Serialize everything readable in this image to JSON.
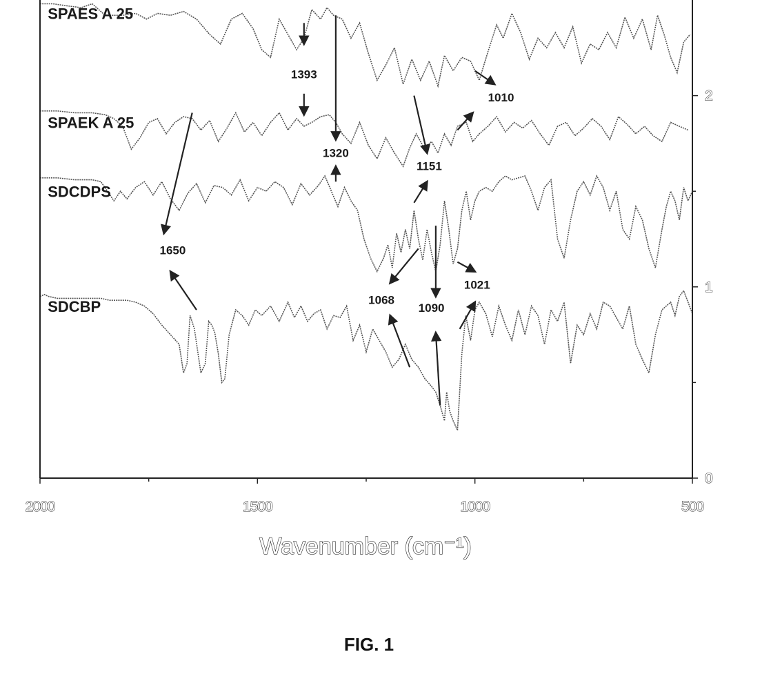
{
  "chart_data": {
    "type": "line",
    "xlabel": "Wavenumber (cm⁻¹)",
    "xlim": [
      2000,
      500
    ],
    "ylim": [
      0,
      2.5
    ],
    "x_ticks": [
      {
        "value": 2000,
        "label": "2000"
      },
      {
        "value": 1500,
        "label": "1500"
      },
      {
        "value": 1000,
        "label": "1000"
      },
      {
        "value": 500,
        "label": "500"
      }
    ],
    "y_ticks": [
      {
        "value": 0,
        "label": "0"
      },
      {
        "value": 1,
        "label": "1"
      },
      {
        "value": 2,
        "label": "2"
      }
    ],
    "series": [
      {
        "name": "SPAES A 25",
        "label_at": [
          1995,
          2.4
        ],
        "x": [
          2000,
          1970,
          1940,
          1905,
          1880,
          1850,
          1810,
          1780,
          1755,
          1730,
          1700,
          1670,
          1640,
          1610,
          1585,
          1560,
          1535,
          1510,
          1490,
          1470,
          1450,
          1430,
          1410,
          1393,
          1375,
          1355,
          1340,
          1325,
          1305,
          1285,
          1265,
          1245,
          1225,
          1205,
          1185,
          1165,
          1145,
          1125,
          1105,
          1085,
          1070,
          1050,
          1030,
          1010,
          990,
          970,
          950,
          935,
          915,
          895,
          875,
          855,
          835,
          815,
          795,
          775,
          755,
          735,
          715,
          695,
          675,
          655,
          635,
          615,
          595,
          580,
          565,
          550,
          535,
          520,
          505
        ],
        "y": [
          2.48,
          2.48,
          2.47,
          2.46,
          2.48,
          2.42,
          2.42,
          2.43,
          2.4,
          2.43,
          2.42,
          2.44,
          2.4,
          2.32,
          2.27,
          2.4,
          2.43,
          2.35,
          2.24,
          2.2,
          2.4,
          2.32,
          2.24,
          2.3,
          2.45,
          2.4,
          2.46,
          2.42,
          2.4,
          2.3,
          2.38,
          2.22,
          2.08,
          2.16,
          2.25,
          2.06,
          2.19,
          2.08,
          2.18,
          2.05,
          2.21,
          2.13,
          2.2,
          2.18,
          2.08,
          2.23,
          2.37,
          2.3,
          2.43,
          2.33,
          2.19,
          2.3,
          2.25,
          2.33,
          2.25,
          2.36,
          2.17,
          2.27,
          2.24,
          2.33,
          2.25,
          2.41,
          2.3,
          2.4,
          2.24,
          2.42,
          2.32,
          2.2,
          2.12,
          2.28,
          2.32
        ]
      },
      {
        "name": "SPAEK A 25",
        "label_at": [
          1995,
          1.83
        ],
        "x": [
          2000,
          1960,
          1920,
          1880,
          1850,
          1830,
          1810,
          1790,
          1770,
          1750,
          1730,
          1710,
          1690,
          1670,
          1650,
          1630,
          1610,
          1590,
          1570,
          1550,
          1530,
          1510,
          1490,
          1470,
          1450,
          1430,
          1410,
          1393,
          1375,
          1355,
          1335,
          1320,
          1305,
          1285,
          1265,
          1245,
          1225,
          1205,
          1185,
          1165,
          1151,
          1135,
          1115,
          1100,
          1085,
          1070,
          1055,
          1040,
          1020,
          1005,
          990,
          970,
          950,
          930,
          910,
          890,
          870,
          850,
          830,
          810,
          790,
          770,
          750,
          730,
          710,
          690,
          670,
          650,
          630,
          610,
          590,
          570,
          550,
          530,
          510
        ],
        "y": [
          1.92,
          1.92,
          1.91,
          1.91,
          1.9,
          1.88,
          1.84,
          1.72,
          1.78,
          1.86,
          1.88,
          1.8,
          1.86,
          1.89,
          1.88,
          1.82,
          1.87,
          1.76,
          1.83,
          1.91,
          1.81,
          1.86,
          1.79,
          1.86,
          1.91,
          1.82,
          1.88,
          1.84,
          1.86,
          1.89,
          1.9,
          1.86,
          1.8,
          1.75,
          1.86,
          1.74,
          1.67,
          1.78,
          1.7,
          1.63,
          1.72,
          1.8,
          1.72,
          1.76,
          1.7,
          1.8,
          1.74,
          1.84,
          1.86,
          1.76,
          1.8,
          1.84,
          1.89,
          1.81,
          1.86,
          1.83,
          1.87,
          1.8,
          1.74,
          1.84,
          1.86,
          1.79,
          1.83,
          1.88,
          1.84,
          1.77,
          1.89,
          1.85,
          1.8,
          1.84,
          1.79,
          1.76,
          1.86,
          1.84,
          1.82
        ]
      },
      {
        "name": "SDCDPS",
        "label_at": [
          1995,
          1.47
        ],
        "x": [
          2000,
          1960,
          1920,
          1880,
          1860,
          1845,
          1830,
          1815,
          1800,
          1780,
          1760,
          1740,
          1720,
          1700,
          1680,
          1660,
          1640,
          1620,
          1600,
          1580,
          1560,
          1540,
          1520,
          1500,
          1480,
          1460,
          1440,
          1420,
          1400,
          1380,
          1360,
          1345,
          1330,
          1315,
          1300,
          1285,
          1270,
          1255,
          1240,
          1225,
          1210,
          1200,
          1190,
          1180,
          1170,
          1160,
          1150,
          1140,
          1130,
          1120,
          1110,
          1100,
          1090,
          1080,
          1070,
          1060,
          1050,
          1040,
          1030,
          1020,
          1010,
          1000,
          990,
          975,
          960,
          945,
          930,
          915,
          900,
          885,
          870,
          855,
          840,
          825,
          810,
          795,
          780,
          765,
          750,
          735,
          720,
          705,
          690,
          675,
          660,
          645,
          630,
          615,
          600,
          585,
          570,
          560,
          550,
          540,
          530,
          520,
          510,
          500
        ],
        "y": [
          1.57,
          1.57,
          1.56,
          1.56,
          1.55,
          1.5,
          1.45,
          1.5,
          1.46,
          1.52,
          1.55,
          1.48,
          1.55,
          1.46,
          1.4,
          1.49,
          1.54,
          1.44,
          1.53,
          1.52,
          1.48,
          1.56,
          1.45,
          1.52,
          1.5,
          1.55,
          1.52,
          1.43,
          1.54,
          1.48,
          1.53,
          1.58,
          1.5,
          1.42,
          1.52,
          1.45,
          1.4,
          1.25,
          1.15,
          1.08,
          1.15,
          1.22,
          1.1,
          1.28,
          1.18,
          1.3,
          1.2,
          1.4,
          1.25,
          1.14,
          1.3,
          1.18,
          1.08,
          1.22,
          1.45,
          1.3,
          1.12,
          1.2,
          1.4,
          1.5,
          1.35,
          1.45,
          1.5,
          1.52,
          1.5,
          1.55,
          1.58,
          1.56,
          1.57,
          1.58,
          1.5,
          1.4,
          1.52,
          1.56,
          1.25,
          1.15,
          1.35,
          1.5,
          1.55,
          1.48,
          1.58,
          1.52,
          1.4,
          1.5,
          1.3,
          1.25,
          1.42,
          1.35,
          1.2,
          1.1,
          1.3,
          1.42,
          1.5,
          1.45,
          1.35,
          1.52,
          1.45,
          1.5
        ]
      },
      {
        "name": "SDCBP",
        "label_at": [
          1995,
          0.87
        ],
        "x": [
          2000,
          1990,
          1980,
          1960,
          1940,
          1920,
          1900,
          1880,
          1860,
          1840,
          1820,
          1800,
          1780,
          1760,
          1740,
          1720,
          1700,
          1680,
          1670,
          1662,
          1655,
          1645,
          1630,
          1620,
          1612,
          1605,
          1598,
          1590,
          1582,
          1575,
          1565,
          1550,
          1535,
          1520,
          1505,
          1490,
          1470,
          1450,
          1430,
          1415,
          1400,
          1385,
          1370,
          1355,
          1340,
          1325,
          1310,
          1295,
          1280,
          1265,
          1250,
          1235,
          1220,
          1205,
          1190,
          1175,
          1160,
          1145,
          1130,
          1115,
          1100,
          1090,
          1080,
          1070,
          1065,
          1058,
          1050,
          1040,
          1030,
          1021,
          1010,
          1000,
          990,
          975,
          960,
          945,
          930,
          915,
          900,
          885,
          870,
          855,
          840,
          825,
          810,
          795,
          780,
          765,
          750,
          735,
          720,
          705,
          690,
          675,
          660,
          645,
          630,
          615,
          600,
          585,
          570,
          560,
          550,
          540,
          530,
          520,
          510,
          500
        ],
        "y": [
          0.95,
          0.96,
          0.95,
          0.94,
          0.94,
          0.94,
          0.94,
          0.94,
          0.94,
          0.93,
          0.93,
          0.93,
          0.92,
          0.9,
          0.86,
          0.8,
          0.75,
          0.7,
          0.55,
          0.6,
          0.85,
          0.78,
          0.55,
          0.6,
          0.82,
          0.8,
          0.76,
          0.65,
          0.5,
          0.52,
          0.75,
          0.88,
          0.85,
          0.8,
          0.88,
          0.85,
          0.9,
          0.82,
          0.92,
          0.84,
          0.9,
          0.82,
          0.86,
          0.88,
          0.78,
          0.85,
          0.84,
          0.9,
          0.72,
          0.8,
          0.66,
          0.78,
          0.72,
          0.66,
          0.58,
          0.62,
          0.7,
          0.62,
          0.58,
          0.52,
          0.48,
          0.45,
          0.38,
          0.3,
          0.45,
          0.35,
          0.3,
          0.25,
          0.65,
          0.85,
          0.72,
          0.88,
          0.92,
          0.86,
          0.74,
          0.9,
          0.8,
          0.72,
          0.88,
          0.75,
          0.9,
          0.85,
          0.7,
          0.88,
          0.82,
          0.92,
          0.6,
          0.8,
          0.75,
          0.86,
          0.78,
          0.92,
          0.9,
          0.84,
          0.78,
          0.9,
          0.7,
          0.62,
          0.55,
          0.75,
          0.88,
          0.9,
          0.92,
          0.85,
          0.95,
          0.98,
          0.92,
          0.86
        ]
      }
    ],
    "annotations": [
      {
        "text": "1393",
        "label_at": [
          1393,
          2.09
        ],
        "arrows": [
          [
            [
              1393,
              2.38
            ],
            [
              1393,
              2.27
            ]
          ],
          [
            [
              1393,
              2.01
            ],
            [
              1393,
              1.9
            ]
          ]
        ]
      },
      {
        "text": "1320",
        "label_at": [
          1320,
          1.68
        ],
        "arrows": [
          [
            [
              1320,
              2.42
            ],
            [
              1320,
              1.77
            ]
          ],
          [
            [
              1320,
              1.55
            ],
            [
              1320,
              1.63
            ]
          ]
        ]
      },
      {
        "text": "1010",
        "label_at": [
          940,
          1.97
        ],
        "arrows": [
          [
            [
              1000,
              2.13
            ],
            [
              955,
              2.06
            ]
          ],
          [
            [
              1040,
              1.82
            ],
            [
              1005,
              1.91
            ]
          ]
        ]
      },
      {
        "text": "1151",
        "label_at": [
          1105,
          1.61
        ],
        "arrows": [
          [
            [
              1140,
              2.0
            ],
            [
              1110,
              1.7
            ]
          ],
          [
            [
              1140,
              1.44
            ],
            [
              1110,
              1.55
            ]
          ]
        ]
      },
      {
        "text": "1650",
        "label_at": [
          1695,
          1.17
        ],
        "arrows": [
          [
            [
              1650,
              1.91
            ],
            [
              1715,
              1.28
            ]
          ],
          [
            [
              1640,
              0.88
            ],
            [
              1700,
              1.08
            ]
          ]
        ]
      },
      {
        "text": "1068",
        "label_at": [
          1215,
          0.91
        ],
        "arrows": [
          [
            [
              1130,
              1.2
            ],
            [
              1195,
              1.02
            ]
          ],
          [
            [
              1150,
              0.58
            ],
            [
              1195,
              0.85
            ]
          ]
        ]
      },
      {
        "text": "1090",
        "label_at": [
          1100,
          0.87
        ],
        "arrows": [
          [
            [
              1090,
              1.32
            ],
            [
              1090,
              0.95
            ]
          ],
          [
            [
              1080,
              0.38
            ],
            [
              1090,
              0.76
            ]
          ]
        ]
      },
      {
        "text": "1021",
        "label_at": [
          995,
          0.99
        ],
        "arrows": [
          [
            [
              1040,
              1.13
            ],
            [
              1000,
              1.08
            ]
          ],
          [
            [
              1035,
              0.78
            ],
            [
              1000,
              0.92
            ]
          ]
        ]
      }
    ],
    "caption": "FIG. 1"
  }
}
